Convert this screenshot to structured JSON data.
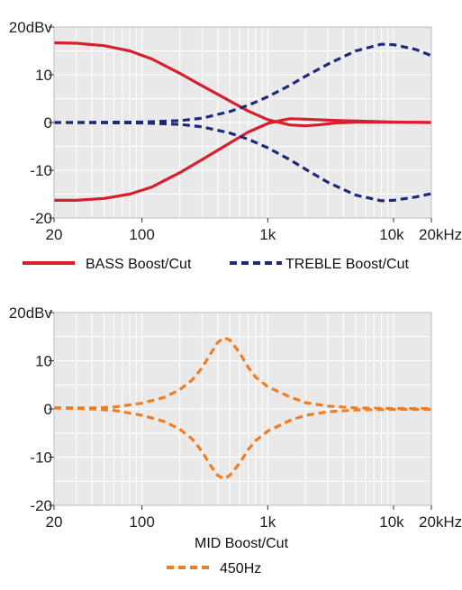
{
  "chart_data": [
    {
      "type": "line",
      "xscale": "log",
      "xlim": [
        20,
        20000
      ],
      "ylim": [
        -20,
        20
      ],
      "x_ticks": [
        {
          "value": 20,
          "label": "20"
        },
        {
          "value": 100,
          "label": "100"
        },
        {
          "value": 1000,
          "label": "1k"
        },
        {
          "value": 10000,
          "label": "10k"
        },
        {
          "value": 20000,
          "label": "20kHz"
        }
      ],
      "y_ticks": [
        {
          "value": 20,
          "label": "20dBv"
        },
        {
          "value": 10,
          "label": "10"
        },
        {
          "value": 0,
          "label": "0"
        },
        {
          "value": -10,
          "label": "-10"
        },
        {
          "value": -20,
          "label": "-20"
        }
      ],
      "grid": true,
      "legend_position": "bottom",
      "series": [
        {
          "name": "BASS Boost/Cut",
          "color": "#d6202e",
          "dash": "solid",
          "curves": [
            [
              [
                20,
                16.7
              ],
              [
                30,
                16.6
              ],
              [
                50,
                16.1
              ],
              [
                80,
                15.0
              ],
              [
                120,
                13.3
              ],
              [
                200,
                10.3
              ],
              [
                300,
                7.7
              ],
              [
                500,
                4.5
              ],
              [
                700,
                2.4
              ],
              [
                1000,
                0.6
              ],
              [
                1200,
                0.1
              ],
              [
                1500,
                -0.5
              ],
              [
                2000,
                -0.7
              ],
              [
                2500,
                -0.5
              ],
              [
                3500,
                -0.1
              ],
              [
                5000,
                0.05
              ],
              [
                10000,
                0.05
              ],
              [
                20000,
                0
              ]
            ],
            [
              [
                20,
                -16.3
              ],
              [
                30,
                -16.3
              ],
              [
                50,
                -15.9
              ],
              [
                80,
                -15.0
              ],
              [
                120,
                -13.5
              ],
              [
                200,
                -10.5
              ],
              [
                300,
                -7.8
              ],
              [
                500,
                -4.3
              ],
              [
                700,
                -2.0
              ],
              [
                1000,
                -0.2
              ],
              [
                1300,
                0.5
              ],
              [
                1500,
                0.8
              ],
              [
                2000,
                0.7
              ],
              [
                3000,
                0.5
              ],
              [
                5000,
                0.3
              ],
              [
                10000,
                0.1
              ],
              [
                20000,
                0
              ]
            ]
          ]
        },
        {
          "name": "TREBLE Boost/Cut",
          "color": "#1f2a7a",
          "dash": "dashed",
          "curves": [
            [
              [
                20,
                0
              ],
              [
                100,
                0.1
              ],
              [
                200,
                0.4
              ],
              [
                300,
                0.9
              ],
              [
                500,
                2.3
              ],
              [
                700,
                3.6
              ],
              [
                1000,
                5.4
              ],
              [
                1500,
                7.8
              ],
              [
                2000,
                9.7
              ],
              [
                3000,
                12.2
              ],
              [
                5000,
                15.0
              ],
              [
                8000,
                16.4
              ],
              [
                10000,
                16.3
              ],
              [
                15000,
                15.3
              ],
              [
                20000,
                14.0
              ]
            ],
            [
              [
                20,
                0
              ],
              [
                100,
                -0.1
              ],
              [
                200,
                -0.4
              ],
              [
                300,
                -0.9
              ],
              [
                500,
                -2.2
              ],
              [
                700,
                -3.5
              ],
              [
                1000,
                -5.3
              ],
              [
                1500,
                -7.8
              ],
              [
                2000,
                -9.8
              ],
              [
                3000,
                -12.5
              ],
              [
                5000,
                -15.2
              ],
              [
                8000,
                -16.4
              ],
              [
                10000,
                -16.3
              ],
              [
                15000,
                -15.6
              ],
              [
                20000,
                -14.9
              ]
            ]
          ]
        }
      ]
    },
    {
      "type": "line",
      "xscale": "log",
      "xlim": [
        20,
        20000
      ],
      "ylim": [
        -20,
        20
      ],
      "x_ticks": [
        {
          "value": 20,
          "label": "20"
        },
        {
          "value": 100,
          "label": "100"
        },
        {
          "value": 1000,
          "label": "1k"
        },
        {
          "value": 10000,
          "label": "10k"
        },
        {
          "value": 20000,
          "label": "20kHz"
        }
      ],
      "y_ticks": [
        {
          "value": 20,
          "label": "20dBv"
        },
        {
          "value": 10,
          "label": "10"
        },
        {
          "value": 0,
          "label": "0"
        },
        {
          "value": -10,
          "label": "-10"
        },
        {
          "value": -20,
          "label": "-20"
        }
      ],
      "grid": true,
      "title": "MID Boost/Cut",
      "title_position": "bottom",
      "legend_position": "bottom",
      "series": [
        {
          "name": "450Hz",
          "color": "#f07d22",
          "dash": "dashed",
          "curves": [
            [
              [
                20,
                0.2
              ],
              [
                40,
                0.2
              ],
              [
                60,
                0.4
              ],
              [
                100,
                1.2
              ],
              [
                150,
                2.4
              ],
              [
                200,
                4.0
              ],
              [
                250,
                6.0
              ],
              [
                300,
                8.5
              ],
              [
                350,
                11.4
              ],
              [
                400,
                13.8
              ],
              [
                450,
                14.8
              ],
              [
                500,
                14.3
              ],
              [
                600,
                11.6
              ],
              [
                700,
                8.6
              ],
              [
                800,
                6.6
              ],
              [
                1000,
                4.6
              ],
              [
                1500,
                2.5
              ],
              [
                2000,
                1.3
              ],
              [
                3000,
                0.6
              ],
              [
                5000,
                0.2
              ],
              [
                10000,
                0.1
              ],
              [
                20000,
                0.1
              ]
            ],
            [
              [
                20,
                0.2
              ],
              [
                40,
                0
              ],
              [
                60,
                -0.3
              ],
              [
                100,
                -1.3
              ],
              [
                150,
                -2.6
              ],
              [
                200,
                -4.2
              ],
              [
                250,
                -6.2
              ],
              [
                300,
                -8.8
              ],
              [
                350,
                -11.7
              ],
              [
                400,
                -13.8
              ],
              [
                450,
                -14.5
              ],
              [
                500,
                -13.8
              ],
              [
                600,
                -11.2
              ],
              [
                700,
                -8.4
              ],
              [
                800,
                -6.6
              ],
              [
                1000,
                -4.6
              ],
              [
                1500,
                -2.4
              ],
              [
                2000,
                -1.3
              ],
              [
                3000,
                -0.6
              ],
              [
                5000,
                -0.2
              ],
              [
                10000,
                -0.1
              ],
              [
                20000,
                -0.1
              ]
            ]
          ]
        }
      ]
    }
  ]
}
